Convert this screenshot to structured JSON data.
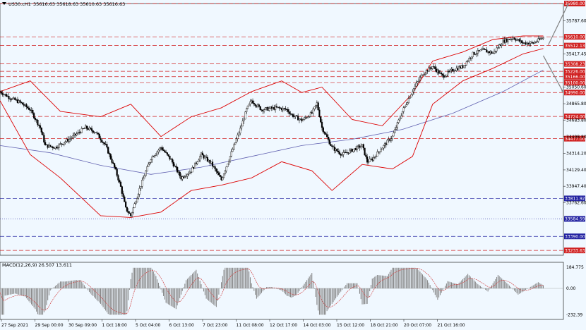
{
  "header": {
    "symbol": "US30.cH1",
    "ohlc": "35616.63 35618.63 35610.63 35616.63"
  },
  "macd": {
    "label": "MACD(12,26,9) 26.507 13.611",
    "ticks": [
      "184.775",
      "0.00",
      "-232.39"
    ]
  },
  "colors": {
    "background": "#f0f8ff",
    "grid": "#c0c8d0",
    "resistance": "#d02020",
    "support": "#2020a0",
    "bollinger": "#dd0000",
    "moving_average": "#6060b0",
    "candles": "#000000",
    "arrow": "#808080",
    "macd_hist": "#808080",
    "macd_signal": "#d04040"
  },
  "chart_data": {
    "type": "candlestick",
    "instrument": "US30.cH1",
    "timeframe": "H1",
    "ylim": [
      33180,
      35980
    ],
    "price_ticks": [
      35787.6,
      35417.45,
      35050.6,
      34865.8,
      34683.8,
      34498.8,
      34314.2,
      34129.4,
      33947.4,
      33762.6
    ],
    "time_labels": [
      "27 Sep 2021",
      "29 Sep 00:00",
      "30 Sep 09:00",
      "1 Oct 18:00",
      "5 Oct 04:00",
      "6 Oct 13:00",
      "7 Oct 23:00",
      "11 Oct 08:00",
      "12 Oct 17:00",
      "14 Oct 03:00",
      "15 Oct 12:00",
      "18 Oct 21:00",
      "20 Oct 07:00",
      "21 Oct 16:00"
    ],
    "levels": [
      {
        "value": 35980.0,
        "label": "35980.00",
        "kind": "resistance"
      },
      {
        "value": 35610.0,
        "label": "35610.00",
        "kind": "resistance"
      },
      {
        "value": 35512.13,
        "label": "35512.13",
        "kind": "resistance"
      },
      {
        "value": 35308.23,
        "label": "35308.23",
        "kind": "resistance"
      },
      {
        "value": 35226.0,
        "label": "35226.00",
        "kind": "resistance"
      },
      {
        "value": 35166.0,
        "label": "35166.00",
        "kind": "resistance"
      },
      {
        "value": 35100.0,
        "label": "35100.00",
        "kind": "resistance"
      },
      {
        "value": 34990.0,
        "label": "34990.00",
        "kind": "resistance"
      },
      {
        "value": 34724.0,
        "label": "34724.00",
        "kind": "resistance"
      },
      {
        "value": 34477.0,
        "label": "34477.00",
        "kind": "resistance"
      },
      {
        "value": 33811.92,
        "label": "33811.92",
        "kind": "support"
      },
      {
        "value": 33584.59,
        "label": "33584.59",
        "kind": "support"
      },
      {
        "value": 33390.0,
        "label": "33390.00",
        "kind": "support"
      },
      {
        "value": 33233.63,
        "label": "33233.63",
        "kind": "resistance"
      }
    ],
    "price_path": [
      [
        0,
        35000
      ],
      [
        2,
        34930
      ],
      [
        4,
        34880
      ],
      [
        6,
        34800
      ],
      [
        8,
        34600
      ],
      [
        9,
        34400
      ],
      [
        11,
        34380
      ],
      [
        14,
        34480
      ],
      [
        17,
        34600
      ],
      [
        19,
        34550
      ],
      [
        21,
        34400
      ],
      [
        23,
        34120
      ],
      [
        24,
        33940
      ],
      [
        25,
        33700
      ],
      [
        26,
        33620
      ],
      [
        28,
        33960
      ],
      [
        30,
        34260
      ],
      [
        32,
        34380
      ],
      [
        34,
        34240
      ],
      [
        36,
        34040
      ],
      [
        38,
        34120
      ],
      [
        40,
        34300
      ],
      [
        42,
        34200
      ],
      [
        44,
        34020
      ],
      [
        46,
        34320
      ],
      [
        48,
        34620
      ],
      [
        49,
        34800
      ],
      [
        50,
        34900
      ],
      [
        52,
        34800
      ],
      [
        55,
        34820
      ],
      [
        57,
        34800
      ],
      [
        58,
        34740
      ],
      [
        60,
        34680
      ],
      [
        62,
        34760
      ],
      [
        63,
        34870
      ],
      [
        64,
        34600
      ],
      [
        66,
        34380
      ],
      [
        68,
        34300
      ],
      [
        70,
        34350
      ],
      [
        72,
        34400
      ],
      [
        73,
        34220
      ],
      [
        74,
        34250
      ],
      [
        76,
        34380
      ],
      [
        78,
        34500
      ],
      [
        80,
        34780
      ],
      [
        82,
        35010
      ],
      [
        84,
        35200
      ],
      [
        86,
        35280
      ],
      [
        88,
        35170
      ],
      [
        90,
        35240
      ],
      [
        92,
        35280
      ],
      [
        94,
        35420
      ],
      [
        96,
        35460
      ],
      [
        98,
        35430
      ],
      [
        100,
        35560
      ],
      [
        102,
        35600
      ],
      [
        104,
        35540
      ],
      [
        106,
        35540
      ],
      [
        108,
        35600
      ]
    ],
    "bollinger_upper": [
      [
        0,
        35000
      ],
      [
        6,
        35120
      ],
      [
        12,
        34780
      ],
      [
        20,
        34720
      ],
      [
        26,
        34860
      ],
      [
        32,
        34500
      ],
      [
        38,
        34720
      ],
      [
        44,
        34820
      ],
      [
        50,
        35000
      ],
      [
        56,
        35120
      ],
      [
        60,
        34990
      ],
      [
        64,
        35050
      ],
      [
        70,
        34690
      ],
      [
        76,
        34620
      ],
      [
        82,
        34980
      ],
      [
        86,
        35340
      ],
      [
        92,
        35440
      ],
      [
        98,
        35580
      ],
      [
        104,
        35620
      ],
      [
        108,
        35620
      ]
    ],
    "bollinger_lower": [
      [
        0,
        34900
      ],
      [
        6,
        34300
      ],
      [
        12,
        34040
      ],
      [
        20,
        33620
      ],
      [
        26,
        33600
      ],
      [
        32,
        33660
      ],
      [
        38,
        33900
      ],
      [
        44,
        33960
      ],
      [
        50,
        34040
      ],
      [
        56,
        34220
      ],
      [
        62,
        34120
      ],
      [
        66,
        33900
      ],
      [
        72,
        34190
      ],
      [
        78,
        34140
      ],
      [
        82,
        34280
      ],
      [
        86,
        34860
      ],
      [
        92,
        35120
      ],
      [
        98,
        35260
      ],
      [
        104,
        35420
      ],
      [
        108,
        35480
      ]
    ],
    "moving_average": [
      [
        0,
        34400
      ],
      [
        10,
        34320
      ],
      [
        20,
        34180
      ],
      [
        30,
        34080
      ],
      [
        40,
        34160
      ],
      [
        50,
        34280
      ],
      [
        60,
        34400
      ],
      [
        70,
        34470
      ],
      [
        80,
        34580
      ],
      [
        90,
        34760
      ],
      [
        100,
        35000
      ],
      [
        108,
        35240
      ]
    ],
    "forecast_arrows": [
      {
        "from": [
          109,
          35520
        ],
        "to": [
          113,
          35980
        ]
      },
      {
        "from": [
          108,
          35400
        ],
        "to": [
          112,
          34990
        ]
      }
    ]
  }
}
